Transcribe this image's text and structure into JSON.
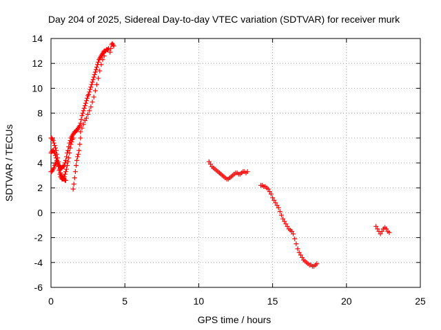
{
  "chart_data": {
    "type": "scatter",
    "title": "Day 204 of 2025, Sidereal Day-to-day VTEC variation (SDTVAR) for receiver murk",
    "xlabel": "GPS time / hours",
    "ylabel": "SDTVAR / TECUs",
    "xlim": [
      0,
      25
    ],
    "ylim": [
      -6,
      14
    ],
    "xticks": [
      "0",
      "5",
      "10",
      "15",
      "20",
      "25"
    ],
    "yticks": [
      "-6",
      "-4",
      "-2",
      "0",
      "2",
      "4",
      "6",
      "8",
      "10",
      "12",
      "14"
    ],
    "grid": true,
    "marker": "plus",
    "color": "#ff0000",
    "segments": [
      {
        "x": [
          0.0,
          0.05,
          0.1,
          0.15,
          0.2,
          0.25,
          0.3,
          0.35,
          0.4,
          0.45,
          0.5,
          0.55,
          0.6,
          0.65,
          0.7,
          0.75,
          0.8,
          0.85,
          0.9,
          0.95,
          1.0,
          1.05,
          1.1,
          1.15,
          1.2,
          1.25,
          1.3,
          1.35,
          1.4,
          1.45,
          1.5,
          1.55,
          1.6,
          1.65,
          1.7,
          1.75,
          1.8,
          1.85,
          1.9,
          1.95,
          2.0,
          2.05,
          2.1,
          2.15,
          2.2,
          2.25,
          2.3,
          2.35,
          2.4,
          2.45,
          2.5,
          2.55,
          2.6,
          2.65,
          2.7,
          2.75,
          2.8,
          2.85,
          2.9,
          2.95,
          3.0,
          3.05,
          3.1,
          3.15,
          3.2,
          3.25,
          3.3,
          3.35,
          3.4,
          3.45,
          3.5,
          3.55,
          3.6,
          3.65,
          3.7,
          3.75,
          3.8,
          3.85,
          3.9
        ],
        "y": [
          3.3,
          3.3,
          3.4,
          3.5,
          3.6,
          3.8,
          3.9,
          4.0,
          4.1,
          4.0,
          3.9,
          3.8,
          3.7,
          3.6,
          3.6,
          3.6,
          3.7,
          3.7,
          3.8,
          4.0,
          4.2,
          4.5,
          4.8,
          5.0,
          5.3,
          5.6,
          5.8,
          6.0,
          6.1,
          6.2,
          6.3,
          6.4,
          6.5,
          6.5,
          6.6,
          6.6,
          6.7,
          6.8,
          6.9,
          7.0,
          7.2,
          7.5,
          7.8,
          8.0,
          8.2,
          8.4,
          8.6,
          8.8,
          9.0,
          9.2,
          9.4,
          9.5,
          9.7,
          9.9,
          10.1,
          10.3,
          10.5,
          10.7,
          10.9,
          11.1,
          11.3,
          11.5,
          11.7,
          11.9,
          12.1,
          12.3,
          12.4,
          12.5,
          12.6,
          12.7,
          12.8,
          12.9,
          13.0,
          13.0,
          13.0,
          13.1,
          13.1,
          13.1,
          13.2
        ]
      },
      {
        "x": [
          0.0,
          0.05,
          0.1,
          0.15,
          0.2,
          0.25,
          0.3,
          0.35,
          0.4,
          0.45,
          0.5,
          0.55,
          0.6,
          0.65,
          0.7,
          0.75,
          0.8,
          0.85,
          0.9,
          0.95,
          1.0,
          1.05,
          1.1,
          1.15,
          1.2,
          1.25,
          1.3,
          1.35,
          1.4,
          1.45,
          1.5
        ],
        "y": [
          4.8,
          4.9,
          5.0,
          5.0,
          4.9,
          4.8,
          4.6,
          4.4,
          4.2,
          4.0,
          3.7,
          3.4,
          3.1,
          2.9,
          2.8,
          2.7,
          2.7,
          2.8,
          2.9,
          3.1,
          3.3,
          3.5,
          3.8,
          4.1,
          4.4,
          4.8,
          5.2,
          5.5,
          5.7,
          5.9,
          6.0
        ]
      },
      {
        "x": [
          0.0,
          0.05,
          0.1,
          0.15,
          0.2,
          0.25,
          0.3,
          0.35,
          0.4,
          0.45,
          0.5,
          0.55,
          0.6,
          0.65,
          0.7,
          0.75,
          0.8,
          0.85,
          0.9,
          0.95,
          1.0
        ],
        "y": [
          6.0,
          6.0,
          5.9,
          5.8,
          5.6,
          5.4,
          5.2,
          5.0,
          4.7,
          4.4,
          4.1,
          3.8,
          3.5,
          3.2,
          3.0,
          2.9,
          2.8,
          2.7,
          2.7,
          2.6,
          2.6
        ]
      },
      {
        "x": [
          1.5,
          1.55,
          1.6,
          1.65,
          1.7,
          1.75,
          1.8,
          1.85,
          1.9,
          1.95,
          2.0
        ],
        "y": [
          1.9,
          2.3,
          2.8,
          3.3,
          3.8,
          4.2,
          4.5,
          4.7,
          5.0,
          5.5,
          6.0
        ]
      },
      {
        "x": [
          2.0,
          2.1,
          2.2,
          2.3,
          2.4,
          2.5,
          2.6,
          2.7,
          2.8,
          2.9,
          3.0,
          3.1,
          3.2,
          3.3,
          3.4,
          3.5,
          3.6
        ],
        "y": [
          6.5,
          6.8,
          7.1,
          7.4,
          7.6,
          7.9,
          8.2,
          8.5,
          8.9,
          9.3,
          9.8,
          10.3,
          10.8,
          11.4,
          11.9,
          12.3,
          12.6
        ]
      },
      {
        "x": [
          4.0,
          4.05,
          4.1,
          4.15,
          4.2,
          4.25
        ],
        "y": [
          12.9,
          13.2,
          13.5,
          13.6,
          13.5,
          13.4
        ]
      },
      {
        "x": [
          10.7,
          10.8,
          10.9,
          11.0,
          11.1,
          11.2,
          11.3,
          11.4,
          11.5,
          11.6,
          11.7,
          11.8,
          11.9,
          12.0,
          12.1,
          12.2,
          12.3,
          12.4,
          12.5,
          12.6,
          12.7,
          12.8,
          12.9,
          13.0,
          13.1,
          13.2,
          13.3
        ],
        "y": [
          4.1,
          3.9,
          3.7,
          3.6,
          3.5,
          3.4,
          3.3,
          3.2,
          3.1,
          3.0,
          2.9,
          2.8,
          2.7,
          2.7,
          2.8,
          2.9,
          3.0,
          3.1,
          3.2,
          3.2,
          3.1,
          3.1,
          3.2,
          3.3,
          3.3,
          3.2,
          3.3
        ]
      },
      {
        "x": [
          14.2,
          14.3,
          14.4,
          14.5,
          14.6,
          14.7,
          14.8,
          14.9,
          15.0,
          15.1,
          15.2,
          15.3,
          15.4,
          15.5,
          15.6,
          15.7,
          15.8,
          15.9,
          16.0,
          16.1,
          16.2,
          16.3,
          16.4,
          16.5,
          16.6,
          16.7,
          16.8,
          16.9,
          17.0,
          17.1,
          17.2,
          17.3,
          17.4,
          17.5,
          17.6,
          17.7,
          17.8,
          17.9,
          18.0
        ],
        "y": [
          2.2,
          2.2,
          2.1,
          2.1,
          2.0,
          1.9,
          1.7,
          1.5,
          1.2,
          1.0,
          0.8,
          0.6,
          0.4,
          0.1,
          -0.2,
          -0.5,
          -0.7,
          -0.9,
          -1.1,
          -1.3,
          -1.4,
          -1.5,
          -1.7,
          -2.1,
          -2.5,
          -2.9,
          -3.2,
          -3.4,
          -3.6,
          -3.8,
          -3.9,
          -4.0,
          -4.1,
          -4.2,
          -4.2,
          -4.3,
          -4.3,
          -4.2,
          -4.1
        ]
      },
      {
        "x": [
          22.0,
          22.1,
          22.2,
          22.3,
          22.4,
          22.5,
          22.6,
          22.7,
          22.8,
          22.9
        ],
        "y": [
          -1.1,
          -1.3,
          -1.5,
          -1.7,
          -1.5,
          -1.3,
          -1.2,
          -1.3,
          -1.5,
          -1.6
        ]
      }
    ]
  }
}
